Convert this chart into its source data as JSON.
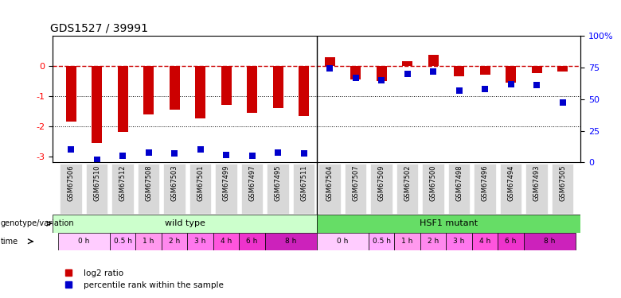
{
  "title": "GDS1527 / 39991",
  "samples": [
    "GSM67506",
    "GSM67510",
    "GSM67512",
    "GSM67508",
    "GSM67503",
    "GSM67501",
    "GSM67499",
    "GSM67497",
    "GSM67495",
    "GSM67511",
    "GSM67504",
    "GSM67507",
    "GSM67509",
    "GSM67502",
    "GSM67500",
    "GSM67498",
    "GSM67496",
    "GSM67494",
    "GSM67493",
    "GSM67505"
  ],
  "log2_ratio": [
    -1.85,
    -2.55,
    -2.2,
    -1.6,
    -1.45,
    -1.75,
    -1.3,
    -1.55,
    -1.4,
    -1.65,
    0.3,
    -0.45,
    -0.5,
    0.15,
    0.38,
    -0.35,
    -0.3,
    -0.55,
    -0.25,
    -0.18
  ],
  "percentile_rank": [
    10,
    2,
    5,
    8,
    7,
    10,
    6,
    5,
    8,
    7,
    74,
    67,
    65,
    70,
    72,
    57,
    58,
    62,
    61,
    47
  ],
  "ylim_left": [
    -3.2,
    1.0
  ],
  "ylim_right": [
    0,
    100
  ],
  "bar_color": "#cc0000",
  "dot_color": "#0000cc",
  "zero_line_color": "#cc0000",
  "right_yticks": [
    0,
    25,
    50,
    75,
    100
  ],
  "right_yticklabels": [
    "0",
    "25",
    "50",
    "75",
    "100%"
  ],
  "left_yticks": [
    -3,
    -2,
    -1,
    0
  ],
  "left_yticklabels": [
    "-3",
    "-2",
    "-1",
    "0"
  ],
  "wild_type_samples": 10,
  "hsf1_mutant_samples": 10,
  "wild_type_color": "#ccffcc",
  "hsf1_color": "#66dd66",
  "bar_width": 0.4,
  "dot_size": 35,
  "time_colors": [
    "#ffccff",
    "#ffaaff",
    "#ff99ee",
    "#ff88ee",
    "#ff77ee",
    "#ff55dd",
    "#ee33cc",
    "#cc22bb"
  ],
  "wt_time_positions": [
    [
      0,
      1,
      "0 h"
    ],
    [
      2,
      2,
      "0.5 h"
    ],
    [
      3,
      3,
      "1 h"
    ],
    [
      4,
      4,
      "2 h"
    ],
    [
      5,
      5,
      "3 h"
    ],
    [
      6,
      6,
      "4 h"
    ],
    [
      7,
      7,
      "6 h"
    ],
    [
      8,
      9,
      "8 h"
    ]
  ],
  "hsf1_time_positions": [
    [
      10,
      11,
      "0 h"
    ],
    [
      12,
      12,
      "0.5 h"
    ],
    [
      13,
      13,
      "1 h"
    ],
    [
      14,
      14,
      "2 h"
    ],
    [
      15,
      15,
      "3 h"
    ],
    [
      16,
      16,
      "4 h"
    ],
    [
      17,
      17,
      "6 h"
    ],
    [
      18,
      19,
      "8 h"
    ]
  ]
}
